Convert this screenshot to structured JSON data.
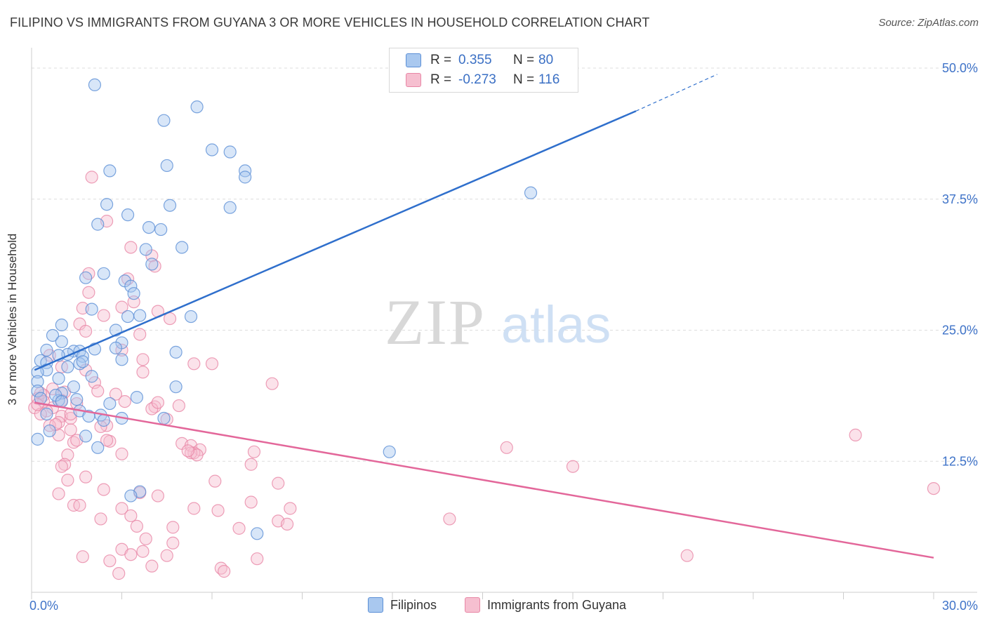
{
  "header": {
    "title": "FILIPINO VS IMMIGRANTS FROM GUYANA 3 OR MORE VEHICLES IN HOUSEHOLD CORRELATION CHART",
    "source": "Source: ZipAtlas.com"
  },
  "watermark": {
    "part1": "ZIP",
    "part2": "atlas"
  },
  "legend": {
    "rows": [
      {
        "r_label": "R =",
        "r_value": "0.355",
        "n_label": "N =",
        "n_value": "80"
      },
      {
        "r_label": "R =",
        "r_value": "-0.273",
        "n_label": "N =",
        "n_value": "116"
      }
    ]
  },
  "bottom_legend": [
    "Filipinos",
    "Immigrants from Guyana"
  ],
  "colors": {
    "blue_fill": "#a9c8ef",
    "blue_stroke": "#5b8fd6",
    "blue_line": "#2f6fcc",
    "pink_fill": "#f6bfd0",
    "pink_stroke": "#e887a6",
    "pink_line": "#e3679a",
    "tick_label": "#3f73c8",
    "grid": "#dddddd"
  },
  "chart_data": {
    "type": "scatter",
    "title": "FILIPINO VS IMMIGRANTS FROM GUYANA 3 OR MORE VEHICLES IN HOUSEHOLD CORRELATION CHART",
    "xlabel": "",
    "ylabel": "3 or more Vehicles in Household",
    "xlim": [
      0,
      30
    ],
    "ylim": [
      0,
      50
    ],
    "x_tick_labels": [
      "0.0%",
      "30.0%"
    ],
    "y_ticks": [
      12.5,
      25.0,
      37.5,
      50.0
    ],
    "y_tick_labels": [
      "12.5%",
      "25.0%",
      "37.5%",
      "50.0%"
    ],
    "grid": true,
    "legend_position": "top-center",
    "series": [
      {
        "name": "Filipinos",
        "r": 0.355,
        "n": 80,
        "trend": {
          "x0": 0.1,
          "y0": 21.2,
          "x1": 20.1,
          "y1": 45.9,
          "dashed_to_x": 22.8,
          "dashed_to_y": 49.4
        },
        "points": [
          [
            2.1,
            48.4
          ],
          [
            5.5,
            46.3
          ],
          [
            4.4,
            45.0
          ],
          [
            6.0,
            42.2
          ],
          [
            6.6,
            42.0
          ],
          [
            4.5,
            40.7
          ],
          [
            2.6,
            40.2
          ],
          [
            7.1,
            40.2
          ],
          [
            7.1,
            39.6
          ],
          [
            16.6,
            38.1
          ],
          [
            2.5,
            37.0
          ],
          [
            4.6,
            36.9
          ],
          [
            6.6,
            36.7
          ],
          [
            3.2,
            36.0
          ],
          [
            2.2,
            35.1
          ],
          [
            3.9,
            34.8
          ],
          [
            4.3,
            34.6
          ],
          [
            3.8,
            32.7
          ],
          [
            5.0,
            32.9
          ],
          [
            4.0,
            31.3
          ],
          [
            1.8,
            30.0
          ],
          [
            2.4,
            30.4
          ],
          [
            3.1,
            29.7
          ],
          [
            3.3,
            29.2
          ],
          [
            3.4,
            28.5
          ],
          [
            2.0,
            27.0
          ],
          [
            3.2,
            26.3
          ],
          [
            3.6,
            26.4
          ],
          [
            5.3,
            26.3
          ],
          [
            1.0,
            25.5
          ],
          [
            2.8,
            25.0
          ],
          [
            0.7,
            24.5
          ],
          [
            1.0,
            23.9
          ],
          [
            3.0,
            23.8
          ],
          [
            2.8,
            23.3
          ],
          [
            0.5,
            23.1
          ],
          [
            1.4,
            23.0
          ],
          [
            2.1,
            23.2
          ],
          [
            1.6,
            23.0
          ],
          [
            4.8,
            22.9
          ],
          [
            1.2,
            22.7
          ],
          [
            0.9,
            22.6
          ],
          [
            1.7,
            22.5
          ],
          [
            3.0,
            22.2
          ],
          [
            0.3,
            22.1
          ],
          [
            0.5,
            21.9
          ],
          [
            1.6,
            21.8
          ],
          [
            1.7,
            22.0
          ],
          [
            0.5,
            21.2
          ],
          [
            0.2,
            21.0
          ],
          [
            1.2,
            21.5
          ],
          [
            0.9,
            20.4
          ],
          [
            2.0,
            20.6
          ],
          [
            0.2,
            20.1
          ],
          [
            1.4,
            19.6
          ],
          [
            0.2,
            19.2
          ],
          [
            1.0,
            19.0
          ],
          [
            0.9,
            18.3
          ],
          [
            4.8,
            19.6
          ],
          [
            0.8,
            18.8
          ],
          [
            3.5,
            18.6
          ],
          [
            0.3,
            18.5
          ],
          [
            1.0,
            18.2
          ],
          [
            1.5,
            18.4
          ],
          [
            2.6,
            18.0
          ],
          [
            1.6,
            17.3
          ],
          [
            0.5,
            17.0
          ],
          [
            2.3,
            16.9
          ],
          [
            3.0,
            16.6
          ],
          [
            4.4,
            16.6
          ],
          [
            2.4,
            16.4
          ],
          [
            1.9,
            16.8
          ],
          [
            0.6,
            15.4
          ],
          [
            1.8,
            14.9
          ],
          [
            0.2,
            14.6
          ],
          [
            2.2,
            13.8
          ],
          [
            11.9,
            13.4
          ],
          [
            3.6,
            9.6
          ],
          [
            3.3,
            9.2
          ],
          [
            7.5,
            5.6
          ]
        ]
      },
      {
        "name": "Immigrants from Guyana",
        "r": -0.273,
        "n": 116,
        "trend": {
          "x0": 0.1,
          "y0": 18.1,
          "x1": 30.0,
          "y1": 3.3
        },
        "points": [
          [
            2.0,
            39.6
          ],
          [
            2.5,
            35.4
          ],
          [
            3.3,
            32.9
          ],
          [
            4.0,
            32.1
          ],
          [
            4.1,
            31.1
          ],
          [
            1.9,
            30.4
          ],
          [
            3.2,
            29.9
          ],
          [
            1.9,
            28.6
          ],
          [
            3.4,
            27.7
          ],
          [
            3.0,
            27.2
          ],
          [
            1.7,
            27.1
          ],
          [
            4.2,
            26.8
          ],
          [
            2.4,
            26.4
          ],
          [
            4.6,
            26.1
          ],
          [
            1.6,
            25.6
          ],
          [
            1.8,
            24.9
          ],
          [
            3.6,
            24.6
          ],
          [
            3.0,
            23.1
          ],
          [
            0.6,
            22.6
          ],
          [
            3.7,
            22.2
          ],
          [
            5.4,
            21.8
          ],
          [
            6.0,
            21.8
          ],
          [
            1.0,
            21.5
          ],
          [
            1.8,
            21.2
          ],
          [
            3.7,
            21.0
          ],
          [
            2.1,
            20.0
          ],
          [
            8.0,
            19.9
          ],
          [
            0.7,
            19.4
          ],
          [
            1.1,
            19.1
          ],
          [
            2.2,
            19.2
          ],
          [
            0.4,
            18.8
          ],
          [
            1.0,
            18.3
          ],
          [
            3.1,
            18.2
          ],
          [
            1.5,
            18.0
          ],
          [
            0.7,
            17.6
          ],
          [
            4.1,
            17.7
          ],
          [
            4.9,
            17.8
          ],
          [
            0.1,
            17.6
          ],
          [
            0.5,
            17.3
          ],
          [
            0.3,
            17.0
          ],
          [
            1.0,
            16.8
          ],
          [
            0.9,
            16.2
          ],
          [
            1.3,
            16.6
          ],
          [
            0.6,
            15.9
          ],
          [
            2.5,
            15.9
          ],
          [
            1.3,
            15.5
          ],
          [
            2.3,
            15.8
          ],
          [
            4.0,
            17.5
          ],
          [
            4.5,
            16.5
          ],
          [
            0.9,
            15.0
          ],
          [
            1.4,
            14.3
          ],
          [
            2.6,
            14.4
          ],
          [
            5.0,
            14.2
          ],
          [
            5.3,
            14.0
          ],
          [
            5.6,
            13.6
          ],
          [
            5.4,
            13.3
          ],
          [
            3.0,
            13.2
          ],
          [
            7.4,
            13.4
          ],
          [
            1.2,
            13.1
          ],
          [
            5.3,
            13.3
          ],
          [
            5.5,
            13.1
          ],
          [
            15.8,
            13.8
          ],
          [
            1.1,
            12.2
          ],
          [
            1.0,
            12.0
          ],
          [
            7.3,
            12.2
          ],
          [
            18.0,
            12.0
          ],
          [
            27.4,
            15.0
          ],
          [
            1.8,
            11.0
          ],
          [
            1.2,
            10.7
          ],
          [
            6.1,
            10.6
          ],
          [
            2.4,
            9.8
          ],
          [
            0.9,
            9.4
          ],
          [
            4.2,
            9.2
          ],
          [
            8.2,
            10.4
          ],
          [
            30.0,
            9.9
          ],
          [
            1.4,
            8.3
          ],
          [
            1.6,
            8.3
          ],
          [
            3.0,
            8.0
          ],
          [
            5.4,
            8.0
          ],
          [
            6.2,
            7.8
          ],
          [
            7.3,
            8.6
          ],
          [
            8.6,
            8.0
          ],
          [
            3.3,
            7.3
          ],
          [
            2.3,
            7.0
          ],
          [
            8.2,
            6.8
          ],
          [
            6.9,
            6.1
          ],
          [
            8.5,
            6.5
          ],
          [
            3.5,
            6.3
          ],
          [
            4.7,
            6.2
          ],
          [
            13.9,
            7.0
          ],
          [
            3.8,
            5.1
          ],
          [
            3.0,
            4.1
          ],
          [
            3.7,
            3.9
          ],
          [
            4.7,
            4.7
          ],
          [
            3.3,
            3.6
          ],
          [
            21.8,
            3.5
          ],
          [
            1.7,
            3.4
          ],
          [
            4.5,
            3.5
          ],
          [
            7.5,
            3.2
          ],
          [
            6.3,
            2.3
          ],
          [
            6.4,
            2.0
          ],
          [
            2.6,
            3.0
          ],
          [
            4.0,
            2.5
          ],
          [
            2.9,
            1.8
          ],
          [
            3.6,
            9.5
          ],
          [
            0.2,
            18.5
          ],
          [
            0.3,
            19.0
          ],
          [
            0.4,
            18.2
          ],
          [
            0.2,
            17.9
          ],
          [
            1.3,
            17.0
          ],
          [
            0.8,
            16.0
          ],
          [
            2.8,
            18.9
          ],
          [
            5.2,
            13.5
          ],
          [
            1.5,
            14.5
          ],
          [
            4.2,
            18.1
          ],
          [
            2.5,
            14.5
          ]
        ]
      }
    ]
  }
}
